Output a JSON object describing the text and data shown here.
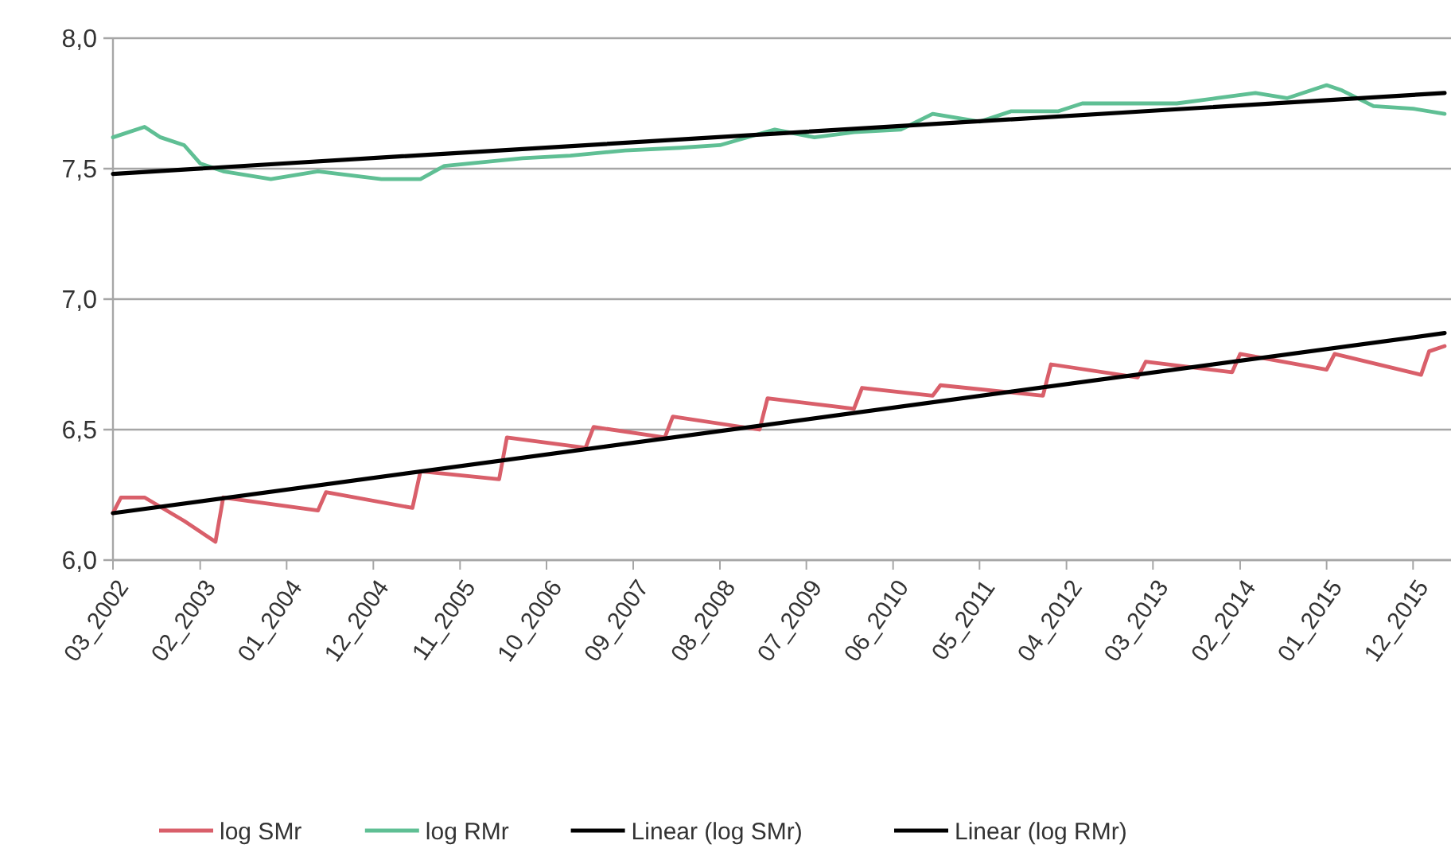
{
  "chart_data": {
    "type": "line",
    "ylim": [
      6,
      8
    ],
    "yticks": [
      {
        "value": 6,
        "label": "6,0"
      },
      {
        "value": 6.5,
        "label": "6,5"
      },
      {
        "value": 7,
        "label": "7,0"
      },
      {
        "value": 7.5,
        "label": "7,5"
      },
      {
        "value": 8,
        "label": "8,0"
      }
    ],
    "xlim": [
      "2002-03",
      "2016-04"
    ],
    "xticks": [
      {
        "value": "2002-03",
        "label": "03_2002"
      },
      {
        "value": "2003-02",
        "label": "02_2003"
      },
      {
        "value": "2004-01",
        "label": "01_2004"
      },
      {
        "value": "2004-12",
        "label": "12_2004"
      },
      {
        "value": "2005-11",
        "label": "11_2005"
      },
      {
        "value": "2006-10",
        "label": "10_2006"
      },
      {
        "value": "2007-09",
        "label": "09_2007"
      },
      {
        "value": "2008-08",
        "label": "08_2008"
      },
      {
        "value": "2009-07",
        "label": "07_2009"
      },
      {
        "value": "2010-06",
        "label": "06_2010"
      },
      {
        "value": "2011-05",
        "label": "05_2011"
      },
      {
        "value": "2012-04",
        "label": "04_2012"
      },
      {
        "value": "2013-03",
        "label": "03_2013"
      },
      {
        "value": "2014-02",
        "label": "02_2014"
      },
      {
        "value": "2015-01",
        "label": "01_2015"
      },
      {
        "value": "2015-12",
        "label": "12_2015"
      }
    ],
    "grid": "y",
    "legend": "bottom",
    "marker": "none",
    "line_style": "solid",
    "series": [
      {
        "name": "log SMr",
        "color": "#d95f6a",
        "x": [
          "2002-03",
          "2002-04",
          "2002-07",
          "2002-12",
          "2003-04",
          "2003-05",
          "2004-05",
          "2004-06",
          "2005-05",
          "2005-06",
          "2006-04",
          "2006-05",
          "2007-03",
          "2007-04",
          "2008-01",
          "2008-02",
          "2009-01",
          "2009-02",
          "2010-01",
          "2010-02",
          "2010-11",
          "2010-12",
          "2012-01",
          "2012-02",
          "2013-01",
          "2013-02",
          "2014-01",
          "2014-02",
          "2015-01",
          "2015-02",
          "2016-01",
          "2016-02",
          "2016-04"
        ],
        "values": [
          6.18,
          6.24,
          6.24,
          6.15,
          6.07,
          6.24,
          6.19,
          6.26,
          6.2,
          6.34,
          6.31,
          6.47,
          6.43,
          6.51,
          6.47,
          6.55,
          6.5,
          6.62,
          6.58,
          6.66,
          6.63,
          6.67,
          6.63,
          6.75,
          6.7,
          6.76,
          6.72,
          6.79,
          6.73,
          6.79,
          6.71,
          6.8,
          6.82
        ]
      },
      {
        "name": "log RMr",
        "color": "#5fbf94",
        "x": [
          "2002-03",
          "2002-07",
          "2002-09",
          "2002-12",
          "2003-02",
          "2003-05",
          "2003-11",
          "2004-05",
          "2005-01",
          "2005-06",
          "2005-09",
          "2006-07",
          "2007-01",
          "2007-08",
          "2008-03",
          "2008-08",
          "2009-03",
          "2009-08",
          "2010-01",
          "2010-07",
          "2010-11",
          "2011-05",
          "2011-09",
          "2012-03",
          "2012-06",
          "2013-06",
          "2013-11",
          "2014-04",
          "2014-08",
          "2015-01",
          "2015-03",
          "2015-07",
          "2015-12",
          "2016-04"
        ],
        "values": [
          7.62,
          7.66,
          7.62,
          7.59,
          7.52,
          7.49,
          7.46,
          7.49,
          7.46,
          7.46,
          7.51,
          7.54,
          7.55,
          7.57,
          7.58,
          7.59,
          7.65,
          7.62,
          7.64,
          7.65,
          7.71,
          7.68,
          7.72,
          7.72,
          7.75,
          7.75,
          7.77,
          7.79,
          7.77,
          7.82,
          7.8,
          7.74,
          7.73,
          7.71
        ]
      },
      {
        "name": "Linear (log SMr)",
        "color": "#000000",
        "x": [
          "2002-03",
          "2016-04"
        ],
        "values": [
          6.18,
          6.87
        ]
      },
      {
        "name": "Linear (log RMr)",
        "color": "#000000",
        "x": [
          "2002-03",
          "2016-04"
        ],
        "values": [
          7.48,
          7.79
        ]
      }
    ]
  }
}
